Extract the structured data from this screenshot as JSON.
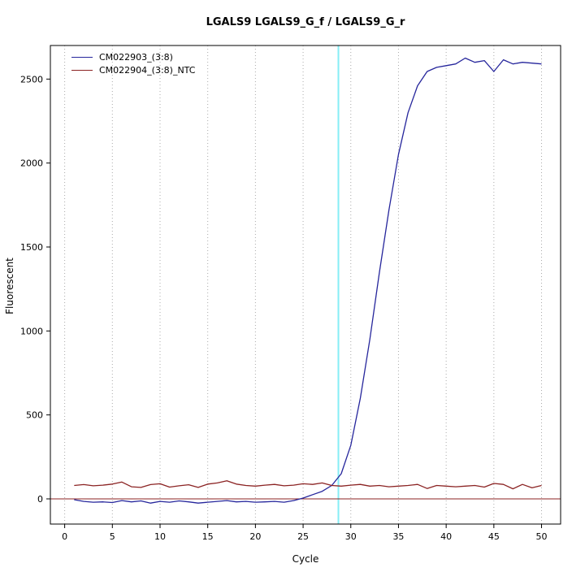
{
  "title": "LGALS9  LGALS9_G_f / LGALS9_G_r",
  "chart_data": {
    "type": "line",
    "title": "LGALS9  LGALS9_G_f / LGALS9_G_r",
    "xlabel": "Cycle",
    "ylabel": "Fluorescent",
    "xlim": [
      -1.5,
      52
    ],
    "ylim": [
      -150,
      2700
    ],
    "x_ticks": [
      0,
      5,
      10,
      15,
      20,
      25,
      30,
      35,
      40,
      45,
      50
    ],
    "y_ticks": [
      0,
      500,
      1000,
      1500,
      2000,
      2500
    ],
    "grid": "vertical-dotted",
    "grid_color": "#aaaaaa",
    "legend_position": "top-left",
    "threshold_line": {
      "x": 28.7,
      "color": "#86eef5"
    },
    "baseline": {
      "y": 0,
      "color": "#8b2323"
    },
    "x": [
      1,
      2,
      3,
      4,
      5,
      6,
      7,
      8,
      9,
      10,
      11,
      12,
      13,
      14,
      15,
      16,
      17,
      18,
      19,
      20,
      21,
      22,
      23,
      24,
      25,
      26,
      27,
      28,
      29,
      30,
      31,
      32,
      33,
      34,
      35,
      36,
      37,
      38,
      39,
      40,
      41,
      42,
      43,
      44,
      45,
      46,
      47,
      48,
      49,
      50
    ],
    "series": [
      {
        "name": "CM022903_(3:8)",
        "color": "#26269c",
        "values": [
          -5,
          -15,
          -20,
          -18,
          -22,
          -10,
          -18,
          -12,
          -25,
          -15,
          -20,
          -12,
          -18,
          -25,
          -20,
          -15,
          -10,
          -18,
          -15,
          -20,
          -18,
          -15,
          -20,
          -10,
          5,
          25,
          45,
          80,
          150,
          320,
          600,
          950,
          1350,
          1720,
          2050,
          2300,
          2460,
          2545,
          2570,
          2580,
          2590,
          2625,
          2600,
          2610,
          2545,
          2615,
          2590,
          2600,
          2595,
          2590
        ]
      },
      {
        "name": "CM022904_(3:8)_NTC",
        "color": "#8b2323",
        "values": [
          80,
          85,
          78,
          82,
          88,
          100,
          72,
          68,
          85,
          90,
          70,
          78,
          84,
          68,
          88,
          95,
          108,
          88,
          80,
          76,
          82,
          86,
          78,
          82,
          90,
          86,
          95,
          80,
          76,
          82,
          86,
          76,
          80,
          72,
          76,
          80,
          86,
          62,
          80,
          76,
          72,
          76,
          80,
          70,
          92,
          86,
          60,
          86,
          66,
          80
        ]
      }
    ]
  }
}
